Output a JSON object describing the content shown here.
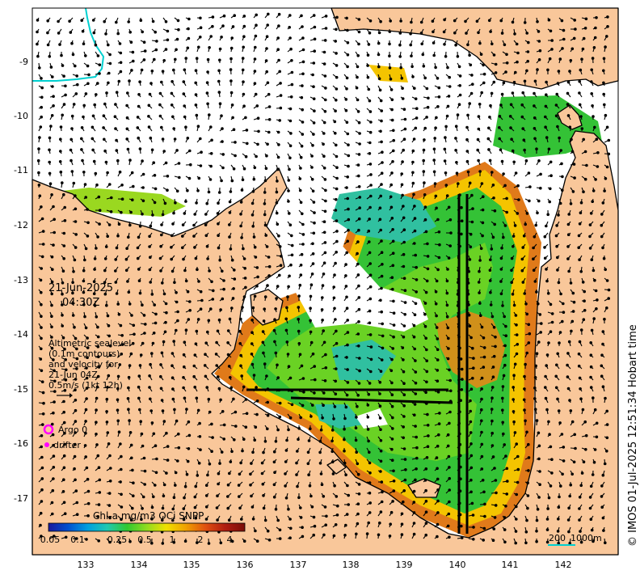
{
  "map": {
    "date": "21-Jun-2025",
    "time": "04:30Z",
    "legend_text": [
      "Altimetric sealevel",
      "(0.1m contours)",
      "and velocity for",
      "21-Jun 04Z",
      "0.5m/s (1kt 12h)"
    ],
    "argo_label": "Argo 0",
    "drifter_label": "drifter",
    "credit": "© IMOS 01-Jul-2025 12:51:34 Hobart time",
    "scale_bar": {
      "left": "200",
      "right": "1000m"
    },
    "lat_ticks": [
      "-9",
      "-10",
      "-11",
      "-12",
      "-13",
      "-14",
      "-15",
      "-16",
      "-17"
    ],
    "lon_ticks": [
      "133",
      "134",
      "135",
      "136",
      "137",
      "138",
      "139",
      "140",
      "141",
      "142"
    ],
    "colorbar": {
      "title": "Chl-a mg/m3 OCi SNPP",
      "ticks": [
        "0.05",
        "0.1",
        "0.25",
        "0.5",
        "1",
        "2",
        "4"
      ],
      "colors": [
        "#1a1a9e",
        "#0050d0",
        "#00a0e0",
        "#20c8b0",
        "#30c830",
        "#90dc20",
        "#f0e000",
        "#f0a000",
        "#e05010",
        "#b01c10",
        "#7a0e08"
      ]
    },
    "colors": {
      "land": "#f9c79a",
      "ocean": "#ffffff",
      "coastline": "#000000",
      "argo": "#ff00ff",
      "drifter": "#ff00ff",
      "contour": "#00d0d0"
    }
  }
}
